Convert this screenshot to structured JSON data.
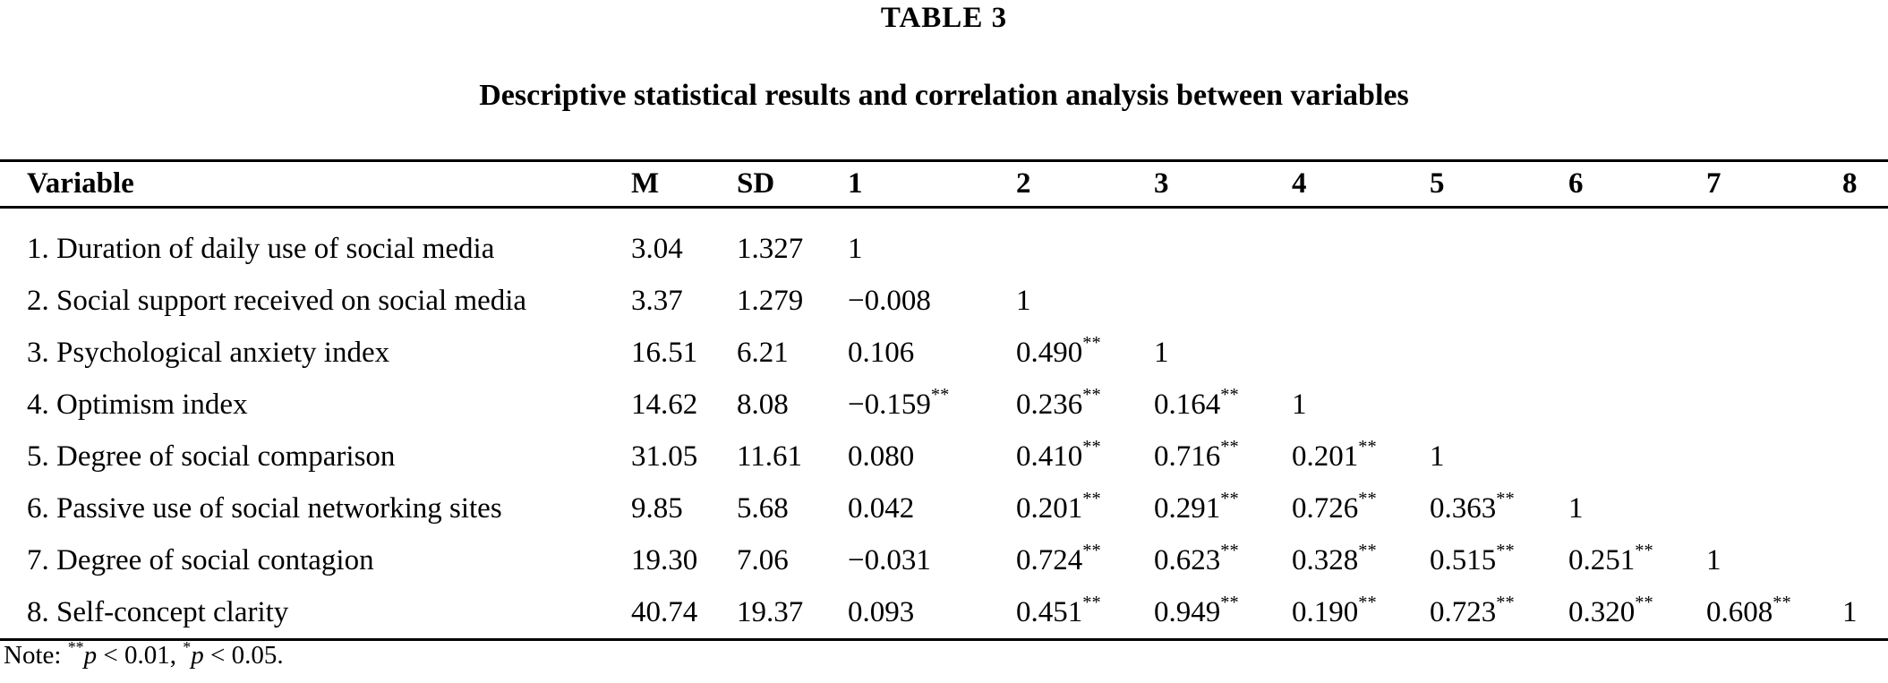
{
  "page": {
    "background_color": "#ffffff",
    "text_color": "#000000",
    "rule_color": "#000000"
  },
  "table": {
    "label": "TABLE 3",
    "caption": "Descriptive statistical results and correlation analysis between variables",
    "columns": [
      "Variable",
      "M",
      "SD",
      "1",
      "2",
      "3",
      "4",
      "5",
      "6",
      "7",
      "8"
    ],
    "rows": [
      {
        "variable": "1. Duration of daily use of social media",
        "m": "3.04",
        "sd": "1.327",
        "r": [
          "1",
          "",
          "",
          "",
          "",
          "",
          "",
          ""
        ]
      },
      {
        "variable": "2. Social support received on social media",
        "m": "3.37",
        "sd": "1.279",
        "r": [
          "−0.008",
          "1",
          "",
          "",
          "",
          "",
          "",
          ""
        ]
      },
      {
        "variable": "3. Psychological anxiety index",
        "m": "16.51",
        "sd": "6.21",
        "r": [
          "0.106",
          "0.490**",
          "1",
          "",
          "",
          "",
          "",
          ""
        ]
      },
      {
        "variable": "4. Optimism index",
        "m": "14.62",
        "sd": "8.08",
        "r": [
          "−0.159**",
          "0.236**",
          "0.164**",
          "1",
          "",
          "",
          "",
          ""
        ]
      },
      {
        "variable": "5. Degree of social comparison",
        "m": "31.05",
        "sd": "11.61",
        "r": [
          "0.080",
          "0.410**",
          "0.716**",
          "0.201**",
          "1",
          "",
          "",
          ""
        ]
      },
      {
        "variable": "6. Passive use of social networking sites",
        "m": "9.85",
        "sd": "5.68",
        "r": [
          "0.042",
          "0.201**",
          "0.291**",
          "0.726**",
          "0.363**",
          "1",
          "",
          ""
        ]
      },
      {
        "variable": "7. Degree of social contagion",
        "m": "19.30",
        "sd": "7.06",
        "r": [
          "−0.031",
          "0.724**",
          "0.623**",
          "0.328**",
          "0.515**",
          "0.251**",
          "1",
          ""
        ]
      },
      {
        "variable": "8. Self-concept clarity",
        "m": "40.74",
        "sd": "19.37",
        "r": [
          "0.093",
          "0.451**",
          "0.949**",
          "0.190**",
          "0.723**",
          "0.320**",
          "0.608**",
          "1"
        ]
      }
    ],
    "note_parts": [
      {
        "text": "Note: "
      },
      {
        "sup": "**"
      },
      {
        "italic": "p"
      },
      {
        "text": " < 0.01, "
      },
      {
        "sup": "*"
      },
      {
        "italic": "p"
      },
      {
        "text": " < 0.05."
      }
    ]
  }
}
